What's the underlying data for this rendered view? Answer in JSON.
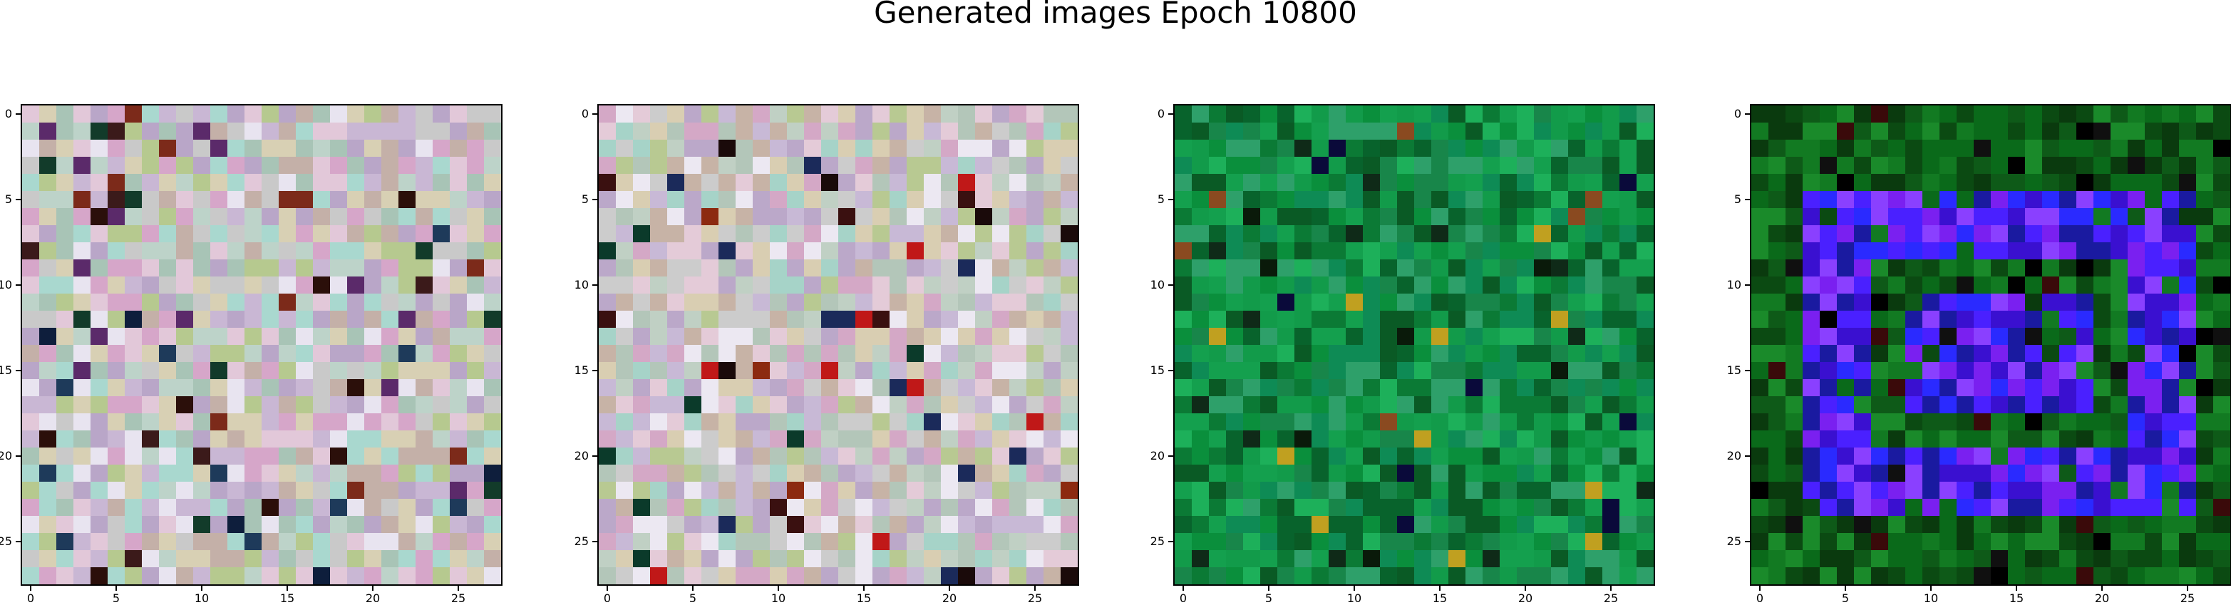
{
  "figure": {
    "title": "Generated images Epoch 10800"
  },
  "chart_data": {
    "type": "heatmap",
    "title": "Generated images Epoch 10800",
    "grid": false,
    "panels": [
      {
        "palette": "pastel-noise",
        "palette_colors": [
          "#c9b7d4",
          "#bdd3c9",
          "#e2c8d9",
          "#a8c4b6",
          "#d8d0b4",
          "#b9a6c8",
          "#e8e4f0",
          "#c4b0a8",
          "#a9d8cf",
          "#d6a6c9",
          "#b6c98f",
          "#c9c9c9"
        ],
        "accent_colors": [
          "#2b0f0a",
          "#1e3a5a",
          "#7c2a1a",
          "#123b2a",
          "#5b2a6a",
          "#3b1a1a",
          "#0e1e3c"
        ],
        "image_size": 28
      },
      {
        "palette": "pastel-noise",
        "palette_colors": [
          "#c8b9d6",
          "#c0d0c4",
          "#e4cbd8",
          "#b3c6b9",
          "#d9ceb2",
          "#bba8c9",
          "#ece8f2",
          "#c7b3a6",
          "#a6d3c8",
          "#d4a8c6",
          "#b8c992",
          "#cccccc"
        ],
        "accent_colors": [
          "#1a0a0a",
          "#3a1010",
          "#8c2a10",
          "#c01818",
          "#0b3a2a",
          "#1b2a5a"
        ],
        "image_size": 28
      },
      {
        "palette": "green-noise",
        "palette_colors": [
          "#0a8f3c",
          "#0b7a35",
          "#129b4a",
          "#08632c",
          "#1db05a",
          "#0e8b55",
          "#2ea06a",
          "#0a5a25",
          "#14a04e",
          "#18864a"
        ],
        "accent_colors": [
          "#0a1a0a",
          "#0f2a18",
          "#c0a020",
          "#8a4a20",
          "#0a0a3a"
        ],
        "image_size": 28
      },
      {
        "palette": "green-blue-purple",
        "palette_colors": [
          "#0b4a12",
          "#0a6a1a",
          "#127a22",
          "#0e5a18",
          "#1a8a2a",
          "#0a3a0e"
        ],
        "accent_colors": [
          "#2a2aff",
          "#4a20ff",
          "#7a20f0",
          "#3a10d0",
          "#8a40ff",
          "#1a1aa0"
        ],
        "image_size": 28
      }
    ],
    "x_ticks": [
      0,
      5,
      10,
      15,
      20,
      25
    ],
    "y_ticks": [
      0,
      5,
      10,
      15,
      20,
      25
    ],
    "xlim": [
      -0.5,
      27.5
    ],
    "ylim": [
      27.5,
      -0.5
    ]
  }
}
